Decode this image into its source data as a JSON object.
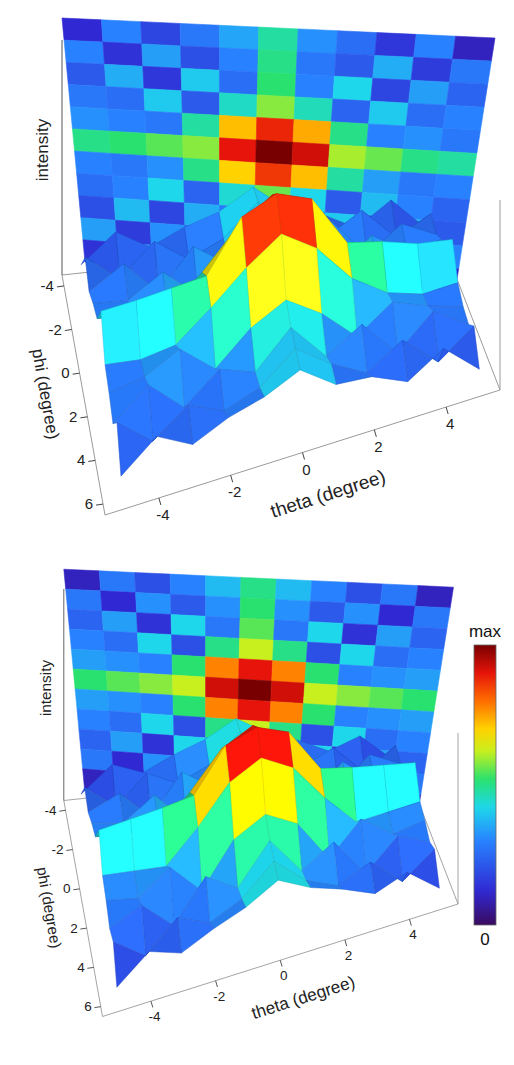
{
  "chart_data": [
    {
      "type": "surface",
      "xlabel": "theta (degree)",
      "ylabel": "phi (degree)",
      "zlabel": "intensity",
      "x": [
        -5,
        -4,
        -3,
        -2,
        -1,
        0,
        1,
        2,
        3,
        4,
        5
      ],
      "y": [
        -4,
        -3,
        -2,
        -1,
        0,
        1,
        2,
        3,
        4,
        5,
        6
      ],
      "values": [
        [
          12,
          30,
          18,
          28,
          35,
          48,
          32,
          26,
          15,
          30,
          10
        ],
        [
          30,
          14,
          34,
          20,
          30,
          50,
          28,
          22,
          36,
          16,
          28
        ],
        [
          22,
          36,
          15,
          40,
          26,
          52,
          30,
          42,
          18,
          34,
          24
        ],
        [
          28,
          26,
          40,
          22,
          45,
          58,
          46,
          24,
          40,
          26,
          30
        ],
        [
          32,
          30,
          28,
          48,
          72,
          88,
          74,
          50,
          30,
          32,
          28
        ],
        [
          50,
          52,
          55,
          58,
          90,
          100,
          92,
          60,
          56,
          50,
          48
        ],
        [
          30,
          28,
          32,
          50,
          70,
          86,
          72,
          48,
          34,
          28,
          30
        ],
        [
          26,
          30,
          42,
          24,
          44,
          56,
          42,
          22,
          38,
          30,
          24
        ],
        [
          20,
          38,
          18,
          36,
          28,
          50,
          26,
          40,
          16,
          36,
          22
        ],
        [
          34,
          16,
          32,
          22,
          30,
          48,
          32,
          20,
          34,
          14,
          30
        ],
        [
          14,
          32,
          20,
          30,
          36,
          46,
          30,
          28,
          18,
          32,
          12
        ]
      ],
      "xlim": [
        -5.5,
        5.5
      ],
      "ylim": [
        -4.5,
        6.5
      ],
      "zlim": [
        0,
        100
      ],
      "xticks": [
        -4,
        -2,
        0,
        2,
        4
      ],
      "yticks": [
        -4,
        -2,
        0,
        2,
        4,
        6
      ]
    },
    {
      "type": "surface",
      "xlabel": "theta (degree)",
      "ylabel": "phi (degree)",
      "zlabel": "intensity",
      "x": [
        -5,
        -4,
        -3,
        -2,
        -1,
        0,
        1,
        2,
        3,
        4,
        5
      ],
      "y": [
        -4,
        -3,
        -2,
        -1,
        0,
        1,
        2,
        3,
        4,
        5,
        6
      ],
      "values": [
        [
          10,
          28,
          20,
          30,
          38,
          50,
          38,
          30,
          20,
          28,
          10
        ],
        [
          28,
          12,
          32,
          22,
          32,
          52,
          32,
          22,
          32,
          12,
          28
        ],
        [
          24,
          34,
          14,
          42,
          28,
          55,
          28,
          42,
          14,
          34,
          24
        ],
        [
          30,
          26,
          42,
          20,
          50,
          62,
          50,
          20,
          42,
          26,
          30
        ],
        [
          34,
          32,
          30,
          52,
          78,
          90,
          78,
          52,
          30,
          32,
          34
        ],
        [
          52,
          55,
          58,
          62,
          92,
          100,
          92,
          62,
          58,
          55,
          52
        ],
        [
          34,
          32,
          30,
          52,
          78,
          90,
          78,
          52,
          30,
          32,
          34
        ],
        [
          30,
          26,
          42,
          20,
          50,
          62,
          50,
          20,
          42,
          26,
          30
        ],
        [
          24,
          34,
          14,
          42,
          28,
          55,
          28,
          42,
          14,
          34,
          24
        ],
        [
          28,
          12,
          32,
          22,
          32,
          52,
          32,
          22,
          32,
          12,
          28
        ],
        [
          10,
          28,
          20,
          30,
          38,
          50,
          38,
          30,
          20,
          28,
          10
        ]
      ],
      "xlim": [
        -5.5,
        5.5
      ],
      "ylim": [
        -4.5,
        6.5
      ],
      "zlim": [
        0,
        100
      ],
      "xticks": [
        -4,
        -2,
        0,
        2,
        4
      ],
      "yticks": [
        -4,
        -2,
        0,
        2,
        4,
        6
      ],
      "colorbar": {
        "range": [
          0,
          100
        ],
        "ticks": [
          {
            "value": 0,
            "label": "0"
          },
          {
            "value": 100,
            "label": "max"
          }
        ]
      }
    }
  ]
}
